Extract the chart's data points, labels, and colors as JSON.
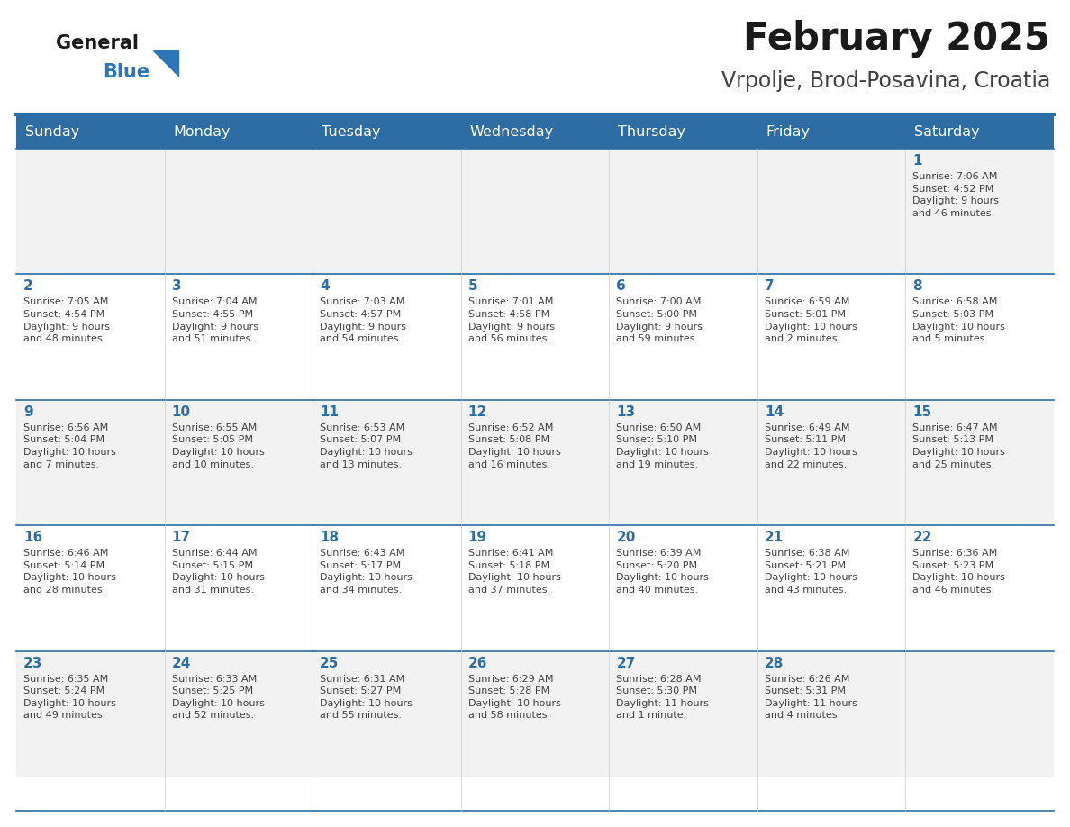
{
  "title": "February 2025",
  "subtitle": "Vrpolje, Brod-Posavina, Croatia",
  "header_color": "#2E6DA4",
  "header_text_color": "#FFFFFF",
  "days_of_week": [
    "Sunday",
    "Monday",
    "Tuesday",
    "Wednesday",
    "Thursday",
    "Friday",
    "Saturday"
  ],
  "cell_bg_odd": "#F2F2F2",
  "cell_bg_even": "#FFFFFF",
  "border_color": "#2E6DA4",
  "day_num_color": "#2E6DA4",
  "text_color": "#404040",
  "logo_general_color": "#1a1a1a",
  "logo_blue_color": "#2E75B6",
  "title_color": "#1a1a1a",
  "subtitle_color": "#404040",
  "weeks": [
    [
      {
        "day": null,
        "text": ""
      },
      {
        "day": null,
        "text": ""
      },
      {
        "day": null,
        "text": ""
      },
      {
        "day": null,
        "text": ""
      },
      {
        "day": null,
        "text": ""
      },
      {
        "day": null,
        "text": ""
      },
      {
        "day": 1,
        "text": "Sunrise: 7:06 AM\nSunset: 4:52 PM\nDaylight: 9 hours\nand 46 minutes."
      }
    ],
    [
      {
        "day": 2,
        "text": "Sunrise: 7:05 AM\nSunset: 4:54 PM\nDaylight: 9 hours\nand 48 minutes."
      },
      {
        "day": 3,
        "text": "Sunrise: 7:04 AM\nSunset: 4:55 PM\nDaylight: 9 hours\nand 51 minutes."
      },
      {
        "day": 4,
        "text": "Sunrise: 7:03 AM\nSunset: 4:57 PM\nDaylight: 9 hours\nand 54 minutes."
      },
      {
        "day": 5,
        "text": "Sunrise: 7:01 AM\nSunset: 4:58 PM\nDaylight: 9 hours\nand 56 minutes."
      },
      {
        "day": 6,
        "text": "Sunrise: 7:00 AM\nSunset: 5:00 PM\nDaylight: 9 hours\nand 59 minutes."
      },
      {
        "day": 7,
        "text": "Sunrise: 6:59 AM\nSunset: 5:01 PM\nDaylight: 10 hours\nand 2 minutes."
      },
      {
        "day": 8,
        "text": "Sunrise: 6:58 AM\nSunset: 5:03 PM\nDaylight: 10 hours\nand 5 minutes."
      }
    ],
    [
      {
        "day": 9,
        "text": "Sunrise: 6:56 AM\nSunset: 5:04 PM\nDaylight: 10 hours\nand 7 minutes."
      },
      {
        "day": 10,
        "text": "Sunrise: 6:55 AM\nSunset: 5:05 PM\nDaylight: 10 hours\nand 10 minutes."
      },
      {
        "day": 11,
        "text": "Sunrise: 6:53 AM\nSunset: 5:07 PM\nDaylight: 10 hours\nand 13 minutes."
      },
      {
        "day": 12,
        "text": "Sunrise: 6:52 AM\nSunset: 5:08 PM\nDaylight: 10 hours\nand 16 minutes."
      },
      {
        "day": 13,
        "text": "Sunrise: 6:50 AM\nSunset: 5:10 PM\nDaylight: 10 hours\nand 19 minutes."
      },
      {
        "day": 14,
        "text": "Sunrise: 6:49 AM\nSunset: 5:11 PM\nDaylight: 10 hours\nand 22 minutes."
      },
      {
        "day": 15,
        "text": "Sunrise: 6:47 AM\nSunset: 5:13 PM\nDaylight: 10 hours\nand 25 minutes."
      }
    ],
    [
      {
        "day": 16,
        "text": "Sunrise: 6:46 AM\nSunset: 5:14 PM\nDaylight: 10 hours\nand 28 minutes."
      },
      {
        "day": 17,
        "text": "Sunrise: 6:44 AM\nSunset: 5:15 PM\nDaylight: 10 hours\nand 31 minutes."
      },
      {
        "day": 18,
        "text": "Sunrise: 6:43 AM\nSunset: 5:17 PM\nDaylight: 10 hours\nand 34 minutes."
      },
      {
        "day": 19,
        "text": "Sunrise: 6:41 AM\nSunset: 5:18 PM\nDaylight: 10 hours\nand 37 minutes."
      },
      {
        "day": 20,
        "text": "Sunrise: 6:39 AM\nSunset: 5:20 PM\nDaylight: 10 hours\nand 40 minutes."
      },
      {
        "day": 21,
        "text": "Sunrise: 6:38 AM\nSunset: 5:21 PM\nDaylight: 10 hours\nand 43 minutes."
      },
      {
        "day": 22,
        "text": "Sunrise: 6:36 AM\nSunset: 5:23 PM\nDaylight: 10 hours\nand 46 minutes."
      }
    ],
    [
      {
        "day": 23,
        "text": "Sunrise: 6:35 AM\nSunset: 5:24 PM\nDaylight: 10 hours\nand 49 minutes."
      },
      {
        "day": 24,
        "text": "Sunrise: 6:33 AM\nSunset: 5:25 PM\nDaylight: 10 hours\nand 52 minutes."
      },
      {
        "day": 25,
        "text": "Sunrise: 6:31 AM\nSunset: 5:27 PM\nDaylight: 10 hours\nand 55 minutes."
      },
      {
        "day": 26,
        "text": "Sunrise: 6:29 AM\nSunset: 5:28 PM\nDaylight: 10 hours\nand 58 minutes."
      },
      {
        "day": 27,
        "text": "Sunrise: 6:28 AM\nSunset: 5:30 PM\nDaylight: 11 hours\nand 1 minute."
      },
      {
        "day": 28,
        "text": "Sunrise: 6:26 AM\nSunset: 5:31 PM\nDaylight: 11 hours\nand 4 minutes."
      },
      {
        "day": null,
        "text": ""
      }
    ]
  ]
}
